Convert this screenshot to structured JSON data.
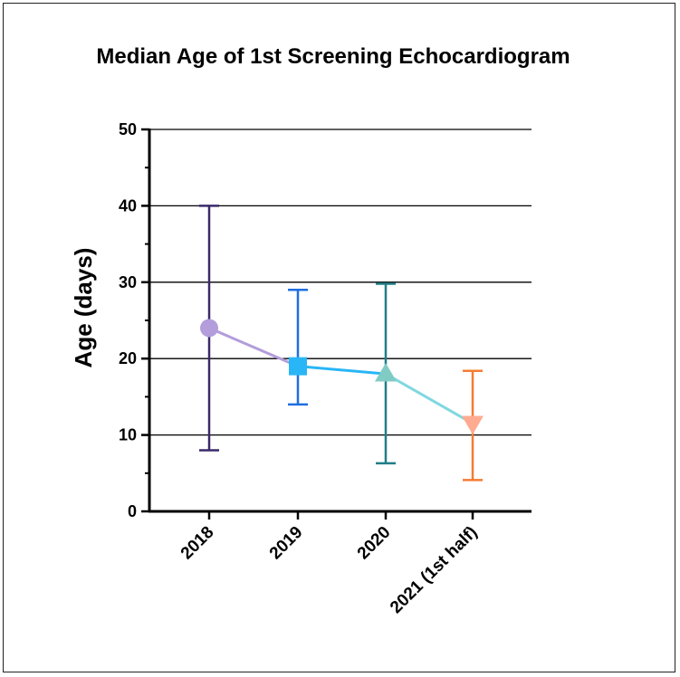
{
  "chart_data": {
    "type": "scatter",
    "title": "Median Age of 1st Screening Echocardiogram",
    "xlabel": "",
    "ylabel": "Age (days)",
    "ylim": [
      0,
      50
    ],
    "yticks": [
      0,
      10,
      20,
      30,
      40,
      50
    ],
    "grid": true,
    "categories": [
      "2018",
      "2019",
      "2020",
      "2021 (1st half)"
    ],
    "points": [
      {
        "category": "2018",
        "median": 24,
        "low": 8,
        "high": 40,
        "marker": "circle",
        "color": "#b39ddb",
        "error_color": "#3a2a6b"
      },
      {
        "category": "2019",
        "median": 19,
        "low": 14,
        "high": 29,
        "marker": "square",
        "color": "#29b6f6",
        "error_color": "#1e6fe0"
      },
      {
        "category": "2020",
        "median": 18,
        "low": 6.3,
        "high": 29.8,
        "marker": "triangle-up",
        "color": "#80cbc4",
        "error_color": "#1f7f86"
      },
      {
        "category": "2021 (1st half)",
        "median": 11.5,
        "low": 4.1,
        "high": 18.4,
        "marker": "triangle-down",
        "color": "#ffab91",
        "error_color": "#f57c33"
      }
    ],
    "connector_colors": [
      "#b39ddb",
      "#29b6f6",
      "#80d8e0"
    ]
  }
}
